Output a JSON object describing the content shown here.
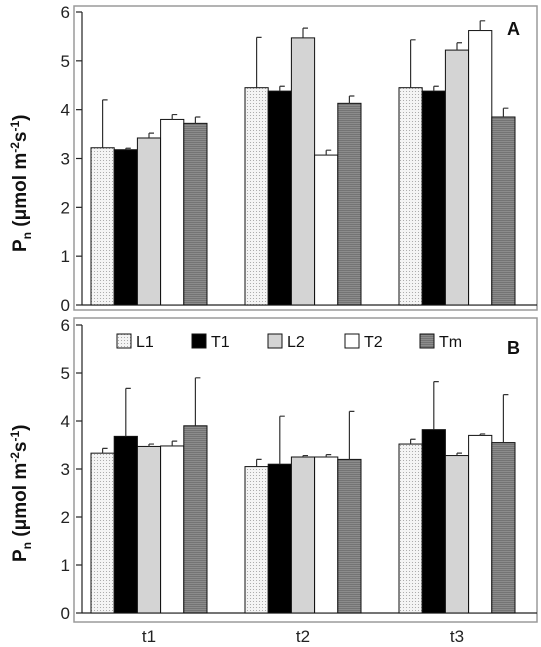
{
  "figure": {
    "y_axis_label_main": "P",
    "y_axis_label_sub": "n",
    "y_axis_unit_prefix": " (μmol m",
    "y_axis_unit_exp1": "-2",
    "y_axis_unit_mid": "s",
    "y_axis_unit_exp2": "-1",
    "y_axis_unit_suffix": ")"
  },
  "chart_data": [
    {
      "type": "bar",
      "panel": "A",
      "categories": [
        "t1",
        "t2",
        "t3"
      ],
      "ylim": [
        0,
        6
      ],
      "yticks": [
        0,
        1,
        2,
        3,
        4,
        5,
        6
      ],
      "grid": false,
      "legend": "none",
      "series": [
        {
          "name": "L1",
          "values": [
            3.22,
            4.45,
            4.45
          ],
          "errors": [
            0.98,
            1.03,
            0.98
          ]
        },
        {
          "name": "T1",
          "values": [
            3.18,
            4.38,
            4.38
          ],
          "errors": [
            0.03,
            0.1,
            0.1
          ]
        },
        {
          "name": "L2",
          "values": [
            3.42,
            5.47,
            5.22
          ],
          "errors": [
            0.1,
            0.2,
            0.15
          ]
        },
        {
          "name": "T2",
          "values": [
            3.8,
            3.07,
            5.62
          ],
          "errors": [
            0.1,
            0.1,
            0.2
          ]
        },
        {
          "name": "Tm",
          "values": [
            3.72,
            4.13,
            3.85
          ],
          "errors": [
            0.13,
            0.15,
            0.18
          ]
        }
      ]
    },
    {
      "type": "bar",
      "panel": "B",
      "categories": [
        "t1",
        "t2",
        "t3"
      ],
      "ylim": [
        0,
        6
      ],
      "yticks": [
        0,
        1,
        2,
        3,
        4,
        5,
        6
      ],
      "grid": false,
      "legend": "top",
      "series": [
        {
          "name": "L1",
          "values": [
            3.33,
            3.05,
            3.52
          ],
          "errors": [
            0.1,
            0.15,
            0.1
          ]
        },
        {
          "name": "T1",
          "values": [
            3.68,
            3.1,
            3.82
          ],
          "errors": [
            1.0,
            1.0,
            1.0
          ]
        },
        {
          "name": "L2",
          "values": [
            3.47,
            3.25,
            3.28
          ],
          "errors": [
            0.05,
            0.03,
            0.05
          ]
        },
        {
          "name": "T2",
          "values": [
            3.48,
            3.25,
            3.7
          ],
          "errors": [
            0.1,
            0.05,
            0.03
          ]
        },
        {
          "name": "Tm",
          "values": [
            3.9,
            3.2,
            3.55
          ],
          "errors": [
            1.0,
            1.0,
            1.0
          ]
        }
      ]
    }
  ],
  "style": {
    "series_fills": {
      "L1": "#f2f2f2",
      "T1": "#000000",
      "L2": "#d4d4d4",
      "T2": "#ffffff",
      "Tm": "#8a8a8a"
    },
    "frame_color": "#9a9a9a"
  }
}
